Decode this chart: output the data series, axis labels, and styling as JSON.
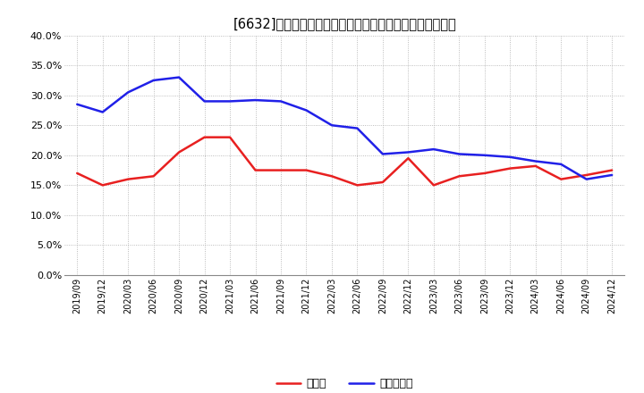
{
  "title": "[6632]　現顔金、有利子負債の総資産に対する比率の推移",
  "x_labels": [
    "2019/09",
    "2019/12",
    "2020/03",
    "2020/06",
    "2020/09",
    "2020/12",
    "2021/03",
    "2021/06",
    "2021/09",
    "2021/12",
    "2022/03",
    "2022/06",
    "2022/09",
    "2022/12",
    "2023/03",
    "2023/06",
    "2023/09",
    "2023/12",
    "2024/03",
    "2024/06",
    "2024/09",
    "2024/12"
  ],
  "genkin": [
    0.17,
    0.15,
    0.16,
    0.165,
    0.205,
    0.23,
    0.23,
    0.175,
    0.175,
    0.175,
    0.165,
    0.15,
    0.155,
    0.195,
    0.15,
    0.165,
    0.17,
    0.178,
    0.182,
    0.16,
    0.167,
    0.175
  ],
  "yuri": [
    0.285,
    0.272,
    0.305,
    0.325,
    0.33,
    0.29,
    0.29,
    0.292,
    0.29,
    0.275,
    0.25,
    0.245,
    0.202,
    0.205,
    0.21,
    0.202,
    0.2,
    0.197,
    0.19,
    0.185,
    0.16,
    0.167
  ],
  "genkin_color": "#e82020",
  "yuri_color": "#2020e8",
  "background_color": "#ffffff",
  "grid_color": "#aaaaaa",
  "ylim": [
    0.0,
    0.4
  ],
  "yticks": [
    0.0,
    0.05,
    0.1,
    0.15,
    0.2,
    0.25,
    0.3,
    0.35,
    0.4
  ],
  "legend_genkin": "現顔金",
  "legend_yuri": "有利子負債",
  "line_width": 1.8
}
